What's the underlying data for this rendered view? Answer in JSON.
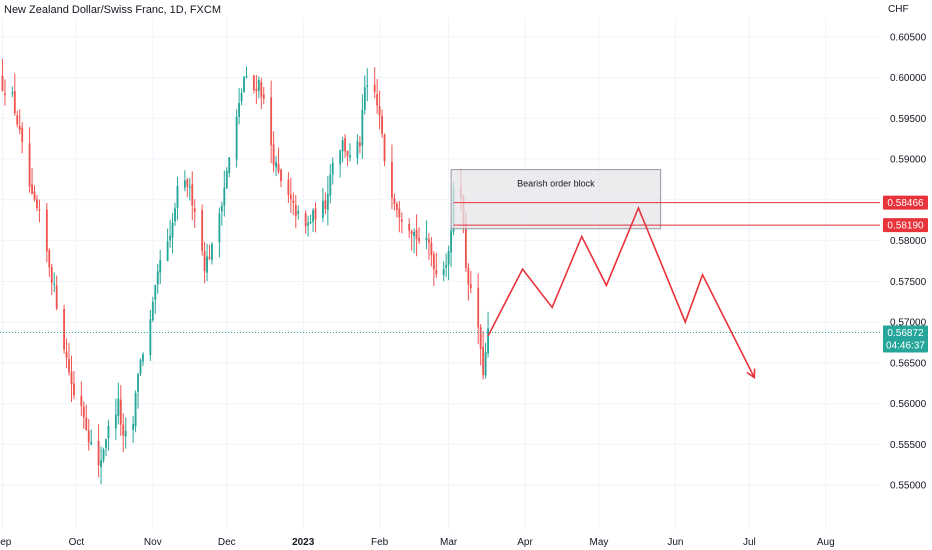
{
  "header": {
    "title": "New Zealand Dollar/Swiss Franc, 1D, FXCM",
    "currency": "CHF"
  },
  "colors": {
    "up": "#26a69a",
    "down": "#ef5350",
    "annotation": "#e8333b",
    "price_line": "#26a69a",
    "grid": "#f0f3fa",
    "box_fill": "#e6e6e9",
    "box_stroke": "#9598a1"
  },
  "chart_data": {
    "type": "candlestick",
    "symbol": "NZDCHF",
    "timeframe": "1D",
    "ylim": [
      0.5445,
      0.6073
    ],
    "xlim": [
      "2022-08-31",
      "2023-08-23"
    ],
    "y_ticks": [
      "0.60500",
      "0.60000",
      "0.59500",
      "0.59000",
      "0.58500",
      "0.58000",
      "0.57500",
      "0.57000",
      "0.56500",
      "0.56000",
      "0.55500",
      "0.55000"
    ],
    "x_ticks": [
      {
        "label": "Sep",
        "date": "2022-09-01",
        "bold": false
      },
      {
        "label": "Oct",
        "date": "2022-10-01",
        "bold": false
      },
      {
        "label": "Nov",
        "date": "2022-11-01",
        "bold": false
      },
      {
        "label": "Dec",
        "date": "2022-12-01",
        "bold": false
      },
      {
        "label": "2023",
        "date": "2023-01-01",
        "bold": true
      },
      {
        "label": "Feb",
        "date": "2023-02-01",
        "bold": false
      },
      {
        "label": "Mar",
        "date": "2023-03-01",
        "bold": false
      },
      {
        "label": "Apr",
        "date": "2023-04-01",
        "bold": false
      },
      {
        "label": "May",
        "date": "2023-05-01",
        "bold": false
      },
      {
        "label": "Jun",
        "date": "2023-06-01",
        "bold": false
      },
      {
        "label": "Jul",
        "date": "2023-07-01",
        "bold": false
      },
      {
        "label": "Aug",
        "date": "2023-08-01",
        "bold": false
      }
    ],
    "close_keyframes": [
      [
        "2022-09-01",
        0.599
      ],
      [
        "2022-09-05",
        0.5975
      ],
      [
        "2022-09-08",
        0.593
      ],
      [
        "2022-09-13",
        0.585
      ],
      [
        "2022-09-16",
        0.583
      ],
      [
        "2022-09-19",
        0.5785
      ],
      [
        "2022-09-22",
        0.574
      ],
      [
        "2022-09-27",
        0.5655
      ],
      [
        "2022-09-30",
        0.561
      ],
      [
        "2022-10-03",
        0.56
      ],
      [
        "2022-10-06",
        0.556
      ],
      [
        "2022-10-10",
        0.552
      ],
      [
        "2022-10-13",
        0.556
      ],
      [
        "2022-10-18",
        0.56
      ],
      [
        "2022-10-20",
        0.5555
      ],
      [
        "2022-10-24",
        0.5575
      ],
      [
        "2022-10-26",
        0.564
      ],
      [
        "2022-10-31",
        0.57
      ],
      [
        "2022-11-04",
        0.5775
      ],
      [
        "2022-11-08",
        0.58
      ],
      [
        "2022-11-11",
        0.586
      ],
      [
        "2022-11-15",
        0.587
      ],
      [
        "2022-11-18",
        0.584
      ],
      [
        "2022-11-22",
        0.577
      ],
      [
        "2022-11-25",
        0.579
      ],
      [
        "2022-11-29",
        0.585
      ],
      [
        "2022-12-02",
        0.59
      ],
      [
        "2022-12-06",
        0.5965
      ],
      [
        "2022-12-08",
        0.6
      ],
      [
        "2022-12-12",
        0.5985
      ],
      [
        "2022-12-14",
        0.5995
      ],
      [
        "2022-12-16",
        0.597
      ],
      [
        "2022-12-20",
        0.59
      ],
      [
        "2022-12-23",
        0.587
      ],
      [
        "2022-12-28",
        0.584
      ],
      [
        "2023-01-02",
        0.5815
      ],
      [
        "2023-01-05",
        0.583
      ],
      [
        "2023-01-10",
        0.5845
      ],
      [
        "2023-01-13",
        0.59
      ],
      [
        "2023-01-17",
        0.592
      ],
      [
        "2023-01-20",
        0.59
      ],
      [
        "2023-01-24",
        0.592
      ],
      [
        "2023-01-26",
        0.5985
      ],
      [
        "2023-01-30",
        0.598
      ],
      [
        "2023-02-01",
        0.595
      ],
      [
        "2023-02-03",
        0.59
      ],
      [
        "2023-02-06",
        0.586
      ],
      [
        "2023-02-09",
        0.5835
      ],
      [
        "2023-02-14",
        0.5815
      ],
      [
        "2023-02-17",
        0.58
      ],
      [
        "2023-02-21",
        0.5795
      ],
      [
        "2023-02-24",
        0.576
      ],
      [
        "2023-02-28",
        0.5775
      ],
      [
        "2023-03-02",
        0.5805
      ],
      [
        "2023-03-03",
        0.587
      ],
      [
        "2023-03-06",
        0.586
      ],
      [
        "2023-03-08",
        0.577
      ],
      [
        "2023-03-10",
        0.5735
      ],
      [
        "2023-03-13",
        0.5695
      ],
      [
        "2023-03-14",
        0.566
      ],
      [
        "2023-03-15",
        0.564
      ],
      [
        "2023-03-16",
        0.566
      ],
      [
        "2023-03-17",
        0.5687
      ]
    ],
    "order_block": {
      "label": "Bearish order block",
      "start": "2023-03-02",
      "end": "2023-05-26",
      "top": 0.5887,
      "bottom": 0.58145
    },
    "horizontal_levels": [
      {
        "value": 0.58466,
        "label": "0.58466",
        "start": "2023-03-03"
      },
      {
        "value": 0.5819,
        "label": "0.58190",
        "start": "2023-03-03"
      }
    ],
    "projection_path": [
      [
        "2023-03-17",
        0.5683
      ],
      [
        "2023-03-31",
        0.5765
      ],
      [
        "2023-04-12",
        0.5718
      ],
      [
        "2023-04-24",
        0.5805
      ],
      [
        "2023-05-04",
        0.5745
      ],
      [
        "2023-05-17",
        0.584
      ],
      [
        "2023-06-05",
        0.57
      ],
      [
        "2023-06-12",
        0.5758
      ],
      [
        "2023-07-03",
        0.5632
      ]
    ],
    "last_price": {
      "value": 0.56872,
      "label": "0.56872",
      "countdown": "04:46:37"
    }
  }
}
